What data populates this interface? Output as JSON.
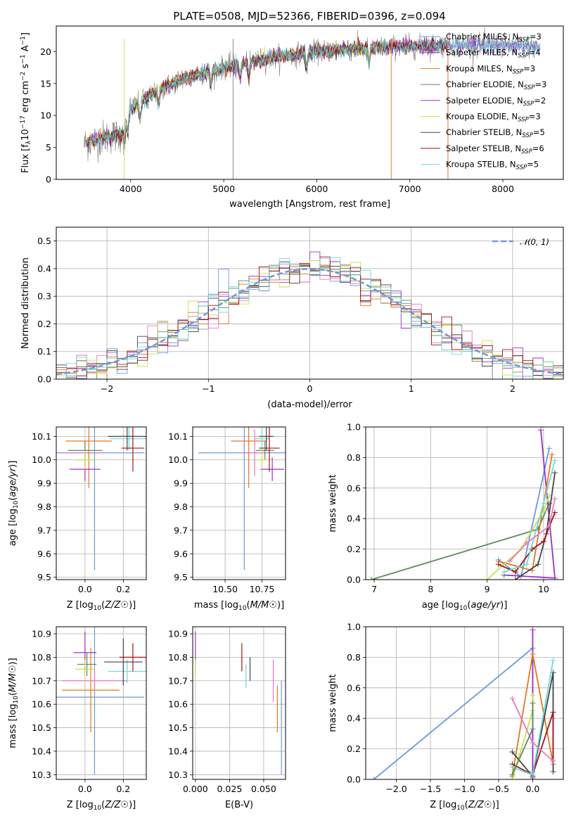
{
  "figure_title": "PLATE=0508, MJD=52366, FIBERID=0396, z=0.094",
  "model_colors": [
    "#6f9ad8",
    "#9b30c8",
    "#e0781f",
    "#5d8a5d",
    "#9b30c8",
    "#c8e24a",
    "#444444",
    "#a01515",
    "#6fd8d8"
  ],
  "chart_data": [
    {
      "id": "spectrum",
      "type": "line",
      "title": "PLATE=0508, MJD=52366, FIBERID=0396, z=0.094",
      "xlabel": "wavelength [Angstrom, rest frame]",
      "ylabel": "Flux [f_λ 10^-17 erg cm^-2 s^-1 A^-1]",
      "xlim": [
        3200,
        8650
      ],
      "ylim": [
        0,
        24
      ],
      "xticks": [
        "4000",
        "5000",
        "6000",
        "7000",
        "8000"
      ],
      "yticks": [
        "0",
        "5",
        "10",
        "15",
        "20"
      ],
      "grid": false,
      "legend_position": "upper right",
      "continuum": {
        "x": [
          3500,
          3700,
          3900,
          4000,
          4200,
          4500,
          5000,
          5500,
          6000,
          6500,
          7000,
          7500,
          8000,
          8500
        ],
        "y": [
          5.5,
          6.5,
          7.0,
          11.0,
          13.0,
          15.5,
          17.5,
          19.0,
          20.0,
          20.5,
          20.8,
          21.0,
          21.0,
          20.5
        ]
      },
      "series": [
        {
          "name": "Chabrier MILES, N_SSP=3",
          "color": "#6f9ad8"
        },
        {
          "name": "Salpeter MILES, N_SSP=4",
          "color": "#9b30c8"
        },
        {
          "name": "Kroupa MILES, N_SSP=3",
          "color": "#e0781f"
        },
        {
          "name": "Chabrier ELODIE, N_SSP=3",
          "color": "#5d8a5d"
        },
        {
          "name": "Salpeter ELODIE, N_SSP=2",
          "color": "#9b30c8"
        },
        {
          "name": "Kroupa ELODIE, N_SSP=3",
          "color": "#c8e24a"
        },
        {
          "name": "Chabrier STELIB, N_SSP=5",
          "color": "#444444"
        },
        {
          "name": "Salpeter STELIB, N_SSP=6",
          "color": "#a01515"
        },
        {
          "name": "Kroupa STELIB, N_SSP=5",
          "color": "#6fd8d8"
        }
      ]
    },
    {
      "id": "residuals",
      "type": "line",
      "xlabel": "(data-model)/error",
      "ylabel": "Normed distribution",
      "xlim": [
        -2.5,
        2.5
      ],
      "ylim": [
        0,
        0.55
      ],
      "xticks": [
        "−2",
        "−1",
        "0",
        "1",
        "2"
      ],
      "yticks": [
        "0.0",
        "0.1",
        "0.2",
        "0.3",
        "0.4",
        "0.5"
      ],
      "grid": true,
      "legend_position": "upper right",
      "legend_label": "𝒩(0, 1)",
      "gaussian": {
        "mu": 0,
        "sigma": 1,
        "color": "#6f9ad8"
      },
      "histogram_bin_width": 0.1,
      "histogram_colors": [
        "#6f9ad8",
        "#9b30c8",
        "#e0781f",
        "#5d8a5d",
        "#e678c0",
        "#c8e24a",
        "#444444",
        "#a01515",
        "#6fd8d8"
      ]
    },
    {
      "id": "age_vs_Z",
      "type": "scatter",
      "xlabel": "Z [log10(Z/Z☉)]",
      "ylabel": "age [log10(age/yr)]",
      "xlim": [
        -0.15,
        0.32
      ],
      "ylim": [
        9.49,
        10.14
      ],
      "xticks": [
        "0.0",
        "0.2"
      ],
      "yticks": [
        "9.5",
        "9.6",
        "9.7",
        "9.8",
        "9.9",
        "10.0",
        "10.1"
      ],
      "grid": true,
      "points": [
        {
          "x": 0.05,
          "y": 10.03,
          "xerr": 0.26,
          "yerr": 0.5,
          "color": "#6f9ad8"
        },
        {
          "x": 0.02,
          "y": 10.08,
          "xerr": 0.12,
          "yerr": 0.2,
          "color": "#e0781f"
        },
        {
          "x": 0.0,
          "y": 9.96,
          "xerr": 0.08,
          "yerr": 0.05,
          "color": "#9b30c8"
        },
        {
          "x": 0.0,
          "y": 10.03,
          "xerr": 0.1,
          "yerr": 0.05,
          "color": "#e678c0"
        },
        {
          "x": 0.0,
          "y": 10.04,
          "xerr": 0.09,
          "yerr": 0.04,
          "color": "#5d8a5d"
        },
        {
          "x": 0.0,
          "y": 10.0,
          "xerr": 0.05,
          "yerr": 0.04,
          "color": "#c8e24a"
        },
        {
          "x": 0.23,
          "y": 10.09,
          "xerr": 0.1,
          "yerr": 0.05,
          "color": "#6fd8d8"
        },
        {
          "x": 0.22,
          "y": 10.1,
          "xerr": 0.1,
          "yerr": 0.06,
          "color": "#444444"
        },
        {
          "x": 0.25,
          "y": 10.05,
          "xerr": 0.06,
          "yerr": 0.1,
          "color": "#a01515"
        }
      ]
    },
    {
      "id": "age_vs_mass",
      "type": "scatter",
      "xlabel": "mass [log10(M/M☉)]",
      "ylabel": "",
      "xlim": [
        10.28,
        10.91
      ],
      "ylim": [
        9.49,
        10.14
      ],
      "xticks": [
        "10.50",
        "10.75"
      ],
      "yticks": [
        "9.5",
        "9.6",
        "9.7",
        "9.8",
        "9.9",
        "10.0",
        "10.1"
      ],
      "grid": true,
      "points": [
        {
          "x": 10.63,
          "y": 10.03,
          "xerr": 0.31,
          "yerr": 0.5,
          "color": "#6f9ad8"
        },
        {
          "x": 10.66,
          "y": 10.08,
          "xerr": 0.12,
          "yerr": 0.2,
          "color": "#e0781f"
        },
        {
          "x": 10.82,
          "y": 9.96,
          "xerr": 0.08,
          "yerr": 0.05,
          "color": "#9b30c8"
        },
        {
          "x": 10.7,
          "y": 10.03,
          "xerr": 0.08,
          "yerr": 0.1,
          "color": "#e678c0"
        },
        {
          "x": 10.77,
          "y": 10.04,
          "xerr": 0.06,
          "yerr": 0.04,
          "color": "#5d8a5d"
        },
        {
          "x": 10.75,
          "y": 10.0,
          "xerr": 0.04,
          "yerr": 0.04,
          "color": "#c8e24a"
        },
        {
          "x": 10.75,
          "y": 10.09,
          "xerr": 0.05,
          "yerr": 0.05,
          "color": "#6fd8d8"
        },
        {
          "x": 10.78,
          "y": 10.1,
          "xerr": 0.05,
          "yerr": 0.06,
          "color": "#444444"
        },
        {
          "x": 10.8,
          "y": 10.05,
          "xerr": 0.07,
          "yerr": 0.1,
          "color": "#a01515"
        }
      ]
    },
    {
      "id": "weight_vs_age",
      "type": "line",
      "xlabel": "age [log10(age/yr)]",
      "ylabel": "mass weight",
      "xlim": [
        6.85,
        10.35
      ],
      "ylim": [
        0,
        1.0
      ],
      "xticks": [
        "7",
        "8",
        "9",
        "10"
      ],
      "yticks": [
        "0.0",
        "0.2",
        "0.4",
        "0.6",
        "0.8",
        "1.0"
      ],
      "grid": true,
      "series": [
        {
          "color": "#5d8a5d",
          "points": [
            [
              6.95,
              0.0
            ],
            [
              9.9,
              0.33
            ],
            [
              10.1,
              0.5
            ]
          ]
        },
        {
          "color": "#6f9ad8",
          "points": [
            [
              9.2,
              0.13
            ],
            [
              9.6,
              0.02
            ],
            [
              10.1,
              0.86
            ]
          ]
        },
        {
          "color": "#9b30c8",
          "points": [
            [
              9.3,
              0.03
            ],
            [
              10.2,
              0.01
            ],
            [
              9.95,
              0.98
            ]
          ]
        },
        {
          "color": "#e0781f",
          "points": [
            [
              9.2,
              0.12
            ],
            [
              9.8,
              0.06
            ],
            [
              10.15,
              0.82
            ]
          ]
        },
        {
          "color": "#c8e24a",
          "points": [
            [
              9.0,
              0.0
            ],
            [
              9.6,
              0.2
            ],
            [
              10.0,
              0.45
            ],
            [
              10.1,
              0.55
            ]
          ]
        },
        {
          "color": "#444444",
          "points": [
            [
              9.5,
              0.0
            ],
            [
              9.9,
              0.1
            ],
            [
              10.05,
              0.3
            ],
            [
              10.2,
              0.7
            ]
          ]
        },
        {
          "color": "#a01515",
          "points": [
            [
              9.2,
              0.1
            ],
            [
              9.5,
              0.05
            ],
            [
              9.8,
              0.2
            ],
            [
              10.0,
              0.25
            ],
            [
              10.2,
              0.44
            ]
          ]
        },
        {
          "color": "#6fd8d8",
          "points": [
            [
              9.3,
              0.05
            ],
            [
              9.7,
              0.1
            ],
            [
              10.0,
              0.5
            ],
            [
              10.2,
              0.78
            ]
          ]
        },
        {
          "color": "#e678c0",
          "points": [
            [
              9.4,
              0.12
            ],
            [
              9.7,
              0.24
            ],
            [
              10.1,
              0.35
            ],
            [
              10.2,
              0.53
            ]
          ]
        }
      ]
    },
    {
      "id": "mass_vs_Z",
      "type": "scatter",
      "xlabel": "Z [log10(Z/Z☉)]",
      "ylabel": "mass [log10(M/M☉)]",
      "xlim": [
        -0.15,
        0.32
      ],
      "ylim": [
        10.28,
        10.93
      ],
      "xticks": [
        "0.0",
        "0.2"
      ],
      "yticks": [
        "10.3",
        "10.4",
        "10.5",
        "10.6",
        "10.7",
        "10.8",
        "10.9"
      ],
      "grid": true,
      "points": [
        {
          "x": 0.05,
          "y": 10.63,
          "xerr": 0.26,
          "yerr": 0.33,
          "color": "#6f9ad8"
        },
        {
          "x": 0.03,
          "y": 10.66,
          "xerr": 0.15,
          "yerr": 0.18,
          "color": "#e0781f"
        },
        {
          "x": 0.0,
          "y": 10.82,
          "xerr": 0.06,
          "yerr": 0.09,
          "color": "#9b30c8"
        },
        {
          "x": 0.05,
          "y": 10.7,
          "xerr": 0.17,
          "yerr": 0.05,
          "color": "#e678c0"
        },
        {
          "x": 0.01,
          "y": 10.77,
          "xerr": 0.05,
          "yerr": 0.05,
          "color": "#5d8a5d"
        },
        {
          "x": 0.0,
          "y": 10.75,
          "xerr": 0.05,
          "yerr": 0.04,
          "color": "#c8e24a"
        },
        {
          "x": 0.22,
          "y": 10.74,
          "xerr": 0.1,
          "yerr": 0.05,
          "color": "#6fd8d8"
        },
        {
          "x": 0.2,
          "y": 10.78,
          "xerr": 0.1,
          "yerr": 0.1,
          "color": "#444444"
        },
        {
          "x": 0.25,
          "y": 10.8,
          "xerr": 0.07,
          "yerr": 0.06,
          "color": "#a01515"
        }
      ]
    },
    {
      "id": "mass_vs_ebv",
      "type": "scatter",
      "xlabel": "E(B-V)",
      "ylabel": "",
      "xlim": [
        -0.002,
        0.066
      ],
      "ylim": [
        10.28,
        10.93
      ],
      "xticks": [
        "0.000",
        "0.025",
        "0.050"
      ],
      "yticks": [
        "10.3",
        "10.4",
        "10.5",
        "10.6",
        "10.7",
        "10.8",
        "10.9"
      ],
      "grid": true,
      "points": [
        {
          "x": 0.063,
          "y": 10.5,
          "yerr": 0.2,
          "color": "#6f9ad8"
        },
        {
          "x": 0.06,
          "y": 10.58,
          "yerr": 0.1,
          "color": "#e0781f"
        },
        {
          "x": 0.0,
          "y": 10.85,
          "yerr": 0.06,
          "color": "#9b30c8"
        },
        {
          "x": 0.057,
          "y": 10.7,
          "yerr": 0.09,
          "color": "#e678c0"
        },
        {
          "x": 0.0,
          "y": 10.77,
          "yerr": 0.04,
          "color": "#5d8a5d"
        },
        {
          "x": 0.0,
          "y": 10.75,
          "yerr": 0.04,
          "color": "#c8e24a"
        },
        {
          "x": 0.037,
          "y": 10.72,
          "yerr": 0.05,
          "color": "#6fd8d8"
        },
        {
          "x": 0.04,
          "y": 10.75,
          "yerr": 0.05,
          "color": "#444444"
        },
        {
          "x": 0.034,
          "y": 10.8,
          "yerr": 0.06,
          "color": "#a01515"
        }
      ]
    },
    {
      "id": "weight_vs_Z",
      "type": "line",
      "xlabel": "Z [log10(Z/Z☉)]",
      "ylabel": "mass weight",
      "xlim": [
        -2.45,
        0.45
      ],
      "ylim": [
        0,
        1.0
      ],
      "xticks": [
        "−2.0",
        "−1.5",
        "−1.0",
        "−0.5",
        "0.0"
      ],
      "yticks": [
        "0.0",
        "0.2",
        "0.4",
        "0.6",
        "0.8",
        "1.0"
      ],
      "grid": true,
      "series": [
        {
          "color": "#6f9ad8",
          "points": [
            [
              -2.33,
              0.0
            ],
            [
              0.0,
              0.86
            ],
            [
              0.0,
              0.05
            ]
          ]
        },
        {
          "color": "#9b30c8",
          "points": [
            [
              0.0,
              0.98
            ],
            [
              0.0,
              0.01
            ]
          ]
        },
        {
          "color": "#e0781f",
          "points": [
            [
              -0.3,
              0.02
            ],
            [
              0.0,
              0.82
            ],
            [
              0.3,
              0.1
            ]
          ]
        },
        {
          "color": "#c8e24a",
          "points": [
            [
              -0.3,
              0.0
            ],
            [
              0.0,
              0.45
            ],
            [
              0.0,
              0.55
            ]
          ]
        },
        {
          "color": "#444444",
          "points": [
            [
              -0.3,
              0.18
            ],
            [
              0.0,
              0.02
            ],
            [
              0.3,
              0.7
            ],
            [
              0.3,
              0.05
            ]
          ]
        },
        {
          "color": "#a01515",
          "points": [
            [
              -0.3,
              0.1
            ],
            [
              0.0,
              0.03
            ],
            [
              0.3,
              0.44
            ],
            [
              0.3,
              0.12
            ]
          ]
        },
        {
          "color": "#6fd8d8",
          "points": [
            [
              -0.3,
              0.08
            ],
            [
              0.0,
              0.03
            ],
            [
              0.3,
              0.78
            ]
          ]
        },
        {
          "color": "#e678c0",
          "points": [
            [
              -0.3,
              0.53
            ],
            [
              0.0,
              0.24
            ],
            [
              0.3,
              0.12
            ]
          ]
        },
        {
          "color": "#5d8a5d",
          "points": [
            [
              -0.3,
              0.03
            ],
            [
              0.0,
              0.33
            ],
            [
              0.0,
              0.5
            ]
          ]
        }
      ]
    }
  ]
}
